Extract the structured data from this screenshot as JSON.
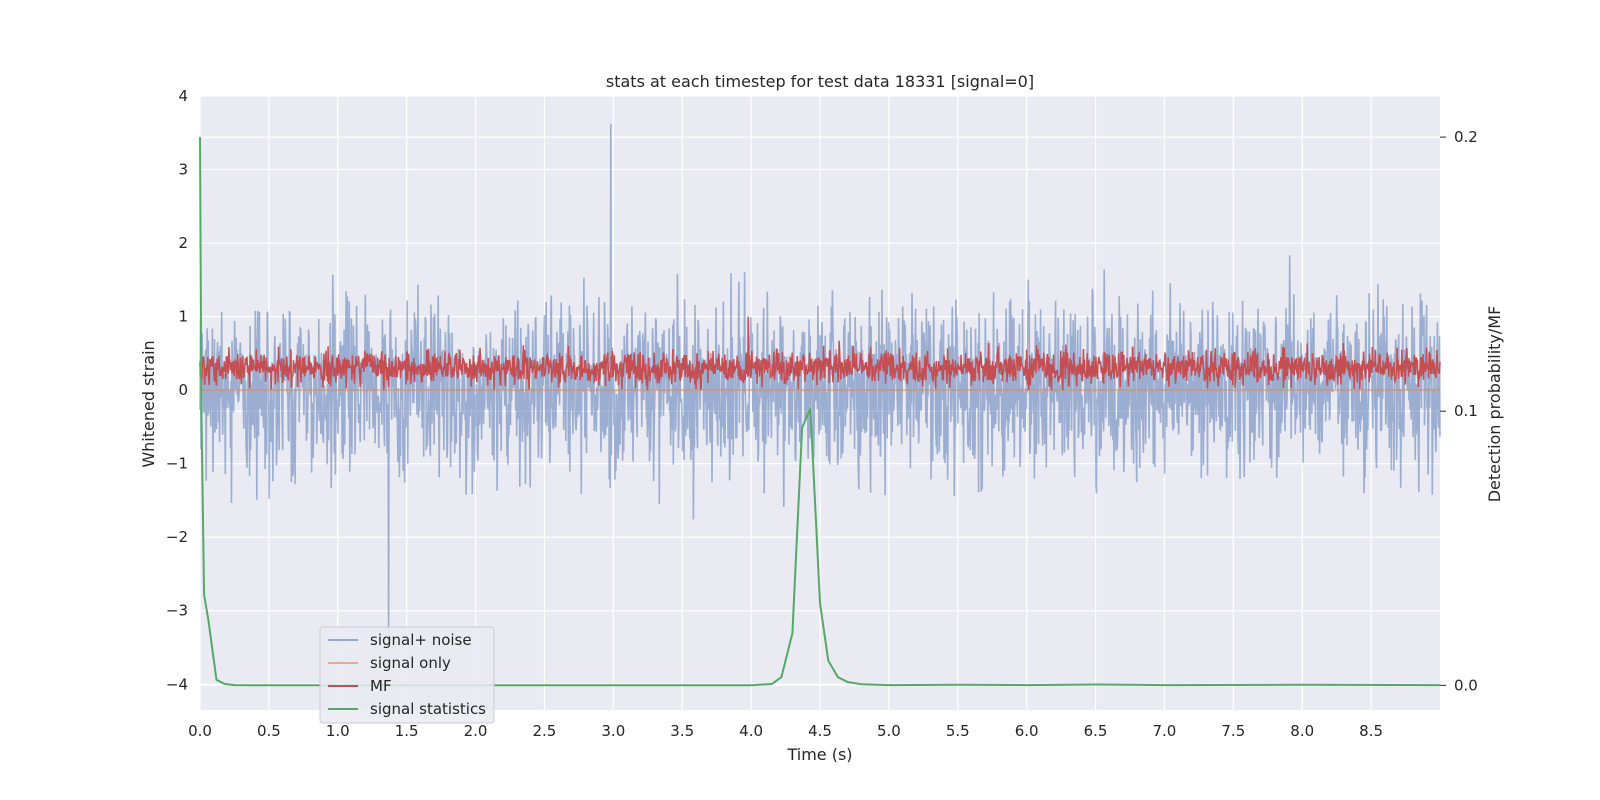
{
  "chart_data": {
    "type": "line",
    "title": "stats at each timestep for test data 18331 [signal=0]",
    "xlabel": "Time (s)",
    "ylabel": "Whitened strain",
    "y2label": "Detection probability/MF",
    "xlim": [
      0.0,
      9.0
    ],
    "ylim": [
      -4.35,
      4.0
    ],
    "y2lim": [
      -0.009,
      0.215
    ],
    "x_ticks": [
      "0.0",
      "0.5",
      "1.0",
      "1.5",
      "2.0",
      "2.5",
      "3.0",
      "3.5",
      "4.0",
      "4.5",
      "5.0",
      "5.5",
      "6.0",
      "6.5",
      "7.0",
      "7.5",
      "8.0",
      "8.5"
    ],
    "y_ticks": [
      "4",
      "3",
      "2",
      "1",
      "0",
      "−1",
      "−2",
      "−3",
      "−4"
    ],
    "y2_ticks": [
      "0.2",
      "0.1",
      "0.0"
    ],
    "grid": true,
    "legend_position": "lower-left",
    "colors": {
      "signal_noise": "#4c72b0",
      "signal_only": "#dd8452",
      "mf": "#c44e52",
      "statistics": "#55a868",
      "background": "#eaeaf2"
    },
    "series": [
      {
        "name": "signal+ noise",
        "axis": "left",
        "description_type": "noise",
        "envelope": {
          "typical_max": 1.8,
          "typical_min": -1.8,
          "peak_max": 3.62,
          "peak_max_x": 2.98,
          "peak_min": -3.45,
          "peak_min_x": 1.37
        }
      },
      {
        "name": "signal only",
        "axis": "left",
        "x": [
          0.0,
          9.0
        ],
        "values": [
          0.0,
          0.0
        ]
      },
      {
        "name": "MF",
        "axis": "left",
        "description_type": "noise",
        "envelope": {
          "typical_max": 0.7,
          "typical_min": 0.0,
          "peak_max": 1.0,
          "peak_max_x": 3.98
        }
      },
      {
        "name": "signal statistics",
        "axis": "right",
        "x": [
          0.0,
          0.01,
          0.03,
          0.06,
          0.12,
          0.18,
          0.25,
          0.5,
          1.0,
          2.0,
          3.0,
          4.0,
          4.15,
          4.22,
          4.3,
          4.37,
          4.43,
          4.5,
          4.56,
          4.63,
          4.7,
          4.8,
          5.0,
          5.5,
          6.0,
          6.5,
          7.0,
          8.0,
          9.0
        ],
        "values": [
          0.2,
          0.1,
          0.033,
          0.024,
          0.002,
          0.0005,
          0.0001,
          0.0,
          0.0,
          0.0,
          0.0,
          0.0,
          0.0005,
          0.003,
          0.019,
          0.094,
          0.101,
          0.03,
          0.009,
          0.003,
          0.0012,
          0.0004,
          0.0001,
          0.0002,
          0.0001,
          0.0003,
          0.0001,
          0.0002,
          0.0001
        ]
      }
    ]
  },
  "legend": {
    "items": [
      {
        "label": "signal+ noise"
      },
      {
        "label": "signal only"
      },
      {
        "label": "MF"
      },
      {
        "label": "signal statistics"
      }
    ]
  }
}
